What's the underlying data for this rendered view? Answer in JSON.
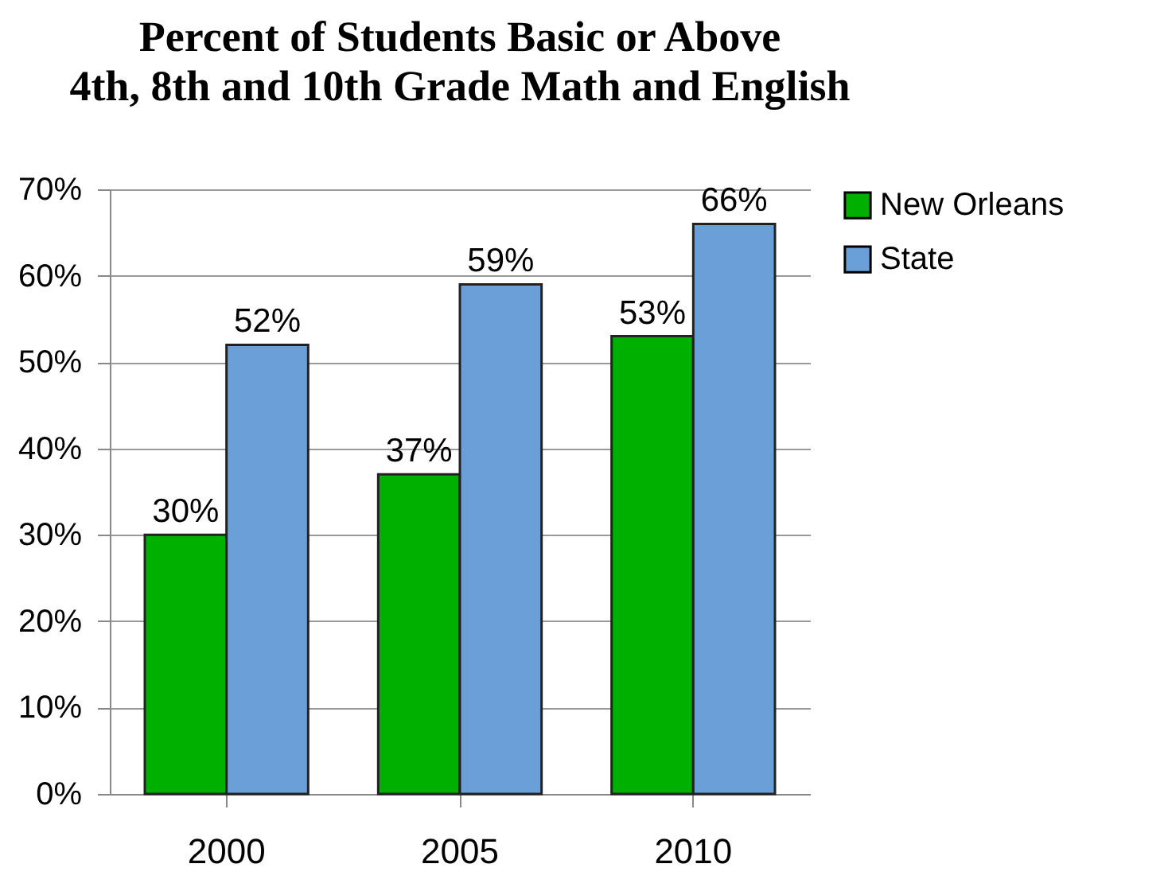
{
  "chart_data": {
    "type": "bar",
    "title": "Percent of Students Basic or Above",
    "subtitle": "4th, 8th and 10th Grade Math and English",
    "categories": [
      "2000",
      "2005",
      "2010"
    ],
    "series": [
      {
        "name": "New Orleans",
        "color": "#00b000",
        "values": [
          30,
          37,
          53
        ],
        "value_labels": [
          "30%",
          "37%",
          "53%"
        ]
      },
      {
        "name": "State",
        "color": "#6a9fd8",
        "values": [
          52,
          59,
          66
        ],
        "value_labels": [
          "52%",
          "59%",
          "66%"
        ]
      }
    ],
    "ylim": [
      0,
      70
    ],
    "yticks": [
      {
        "value": 0,
        "label": "0%"
      },
      {
        "value": 10,
        "label": "10%"
      },
      {
        "value": 20,
        "label": "20%"
      },
      {
        "value": 30,
        "label": "30%"
      },
      {
        "value": 40,
        "label": "40%"
      },
      {
        "value": 50,
        "label": "50%"
      },
      {
        "value": 60,
        "label": "60%"
      },
      {
        "value": 70,
        "label": "70%"
      }
    ],
    "grid": "y",
    "legend": "right"
  }
}
